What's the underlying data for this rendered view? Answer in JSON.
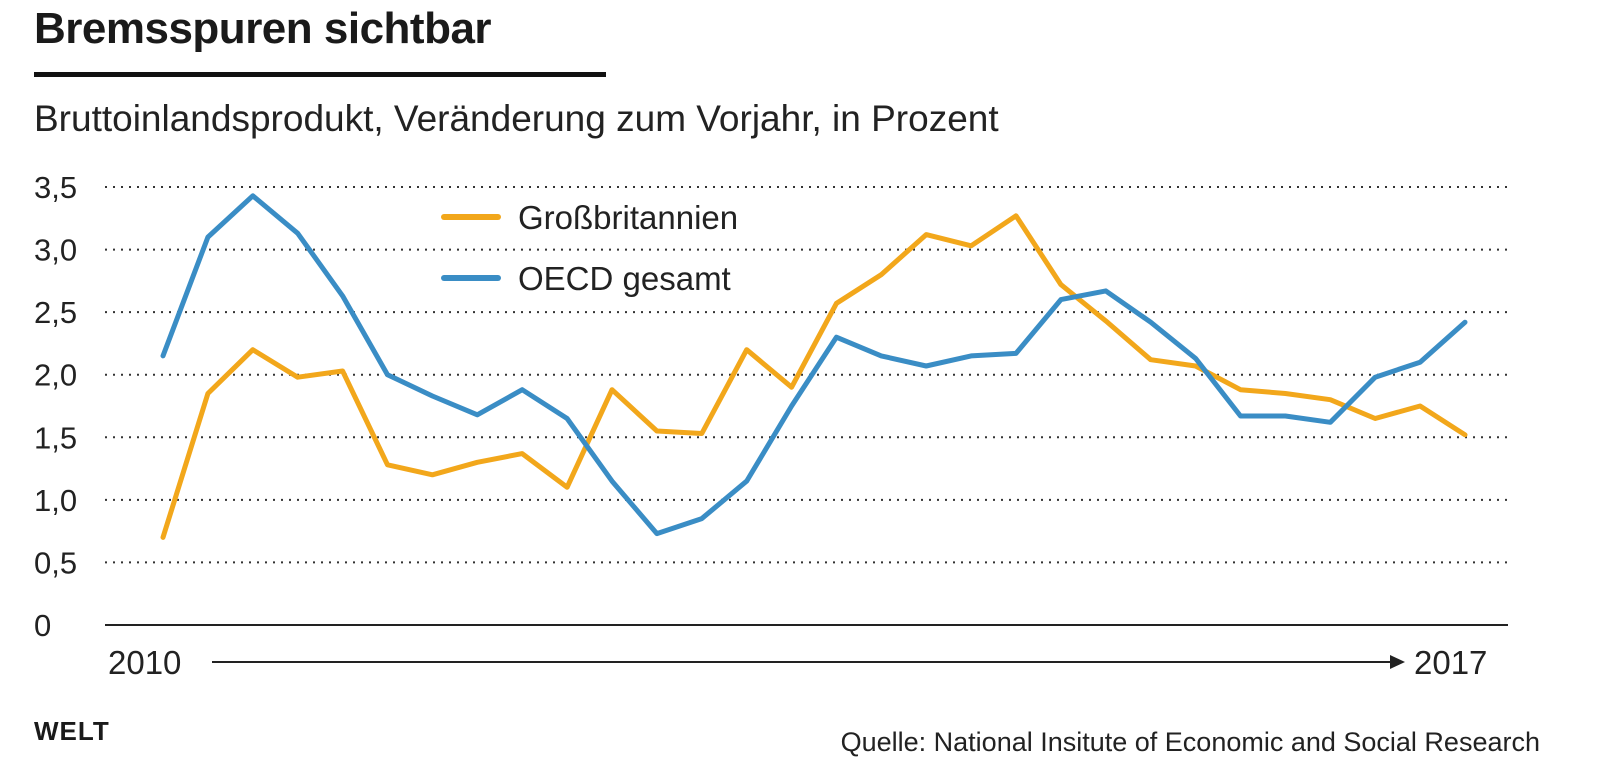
{
  "chart_data": {
    "type": "line",
    "title": "Bremsspuren sichtbar",
    "subtitle": "Bruttoinlandsprodukt, Veränderung zum Vorjahr, in Prozent",
    "x_start_label": "2010",
    "x_end_label": "2017",
    "ylim": [
      0,
      3.5
    ],
    "y_ticks": [
      "0",
      "0,5",
      "1,0",
      "1,5",
      "2,0",
      "2,5",
      "3,0",
      "3,5"
    ],
    "grid": true,
    "legend_position": "top-center",
    "series": [
      {
        "name": "Großbritannien",
        "color": "#f2a71b",
        "values": [
          0.7,
          1.85,
          2.2,
          1.98,
          2.03,
          1.28,
          1.2,
          1.3,
          1.37,
          1.1,
          1.88,
          1.55,
          1.53,
          2.2,
          1.9,
          2.57,
          2.8,
          3.12,
          3.03,
          3.27,
          2.72,
          2.43,
          2.12,
          2.07,
          1.88,
          1.85,
          1.8,
          1.65,
          1.75,
          1.52
        ]
      },
      {
        "name": "OECD gesamt",
        "color": "#3a8dc5",
        "values": [
          2.15,
          3.1,
          3.43,
          3.13,
          2.63,
          2.0,
          1.83,
          1.68,
          1.88,
          1.65,
          1.15,
          0.73,
          0.85,
          1.15,
          1.75,
          2.3,
          2.15,
          2.07,
          2.15,
          2.17,
          2.6,
          2.67,
          2.42,
          2.13,
          1.67,
          1.67,
          1.62,
          1.98,
          2.1,
          2.42
        ]
      }
    ]
  },
  "footer": {
    "logo": "WELT",
    "source": "Quelle: National Insitute of Economic and Social Research"
  }
}
